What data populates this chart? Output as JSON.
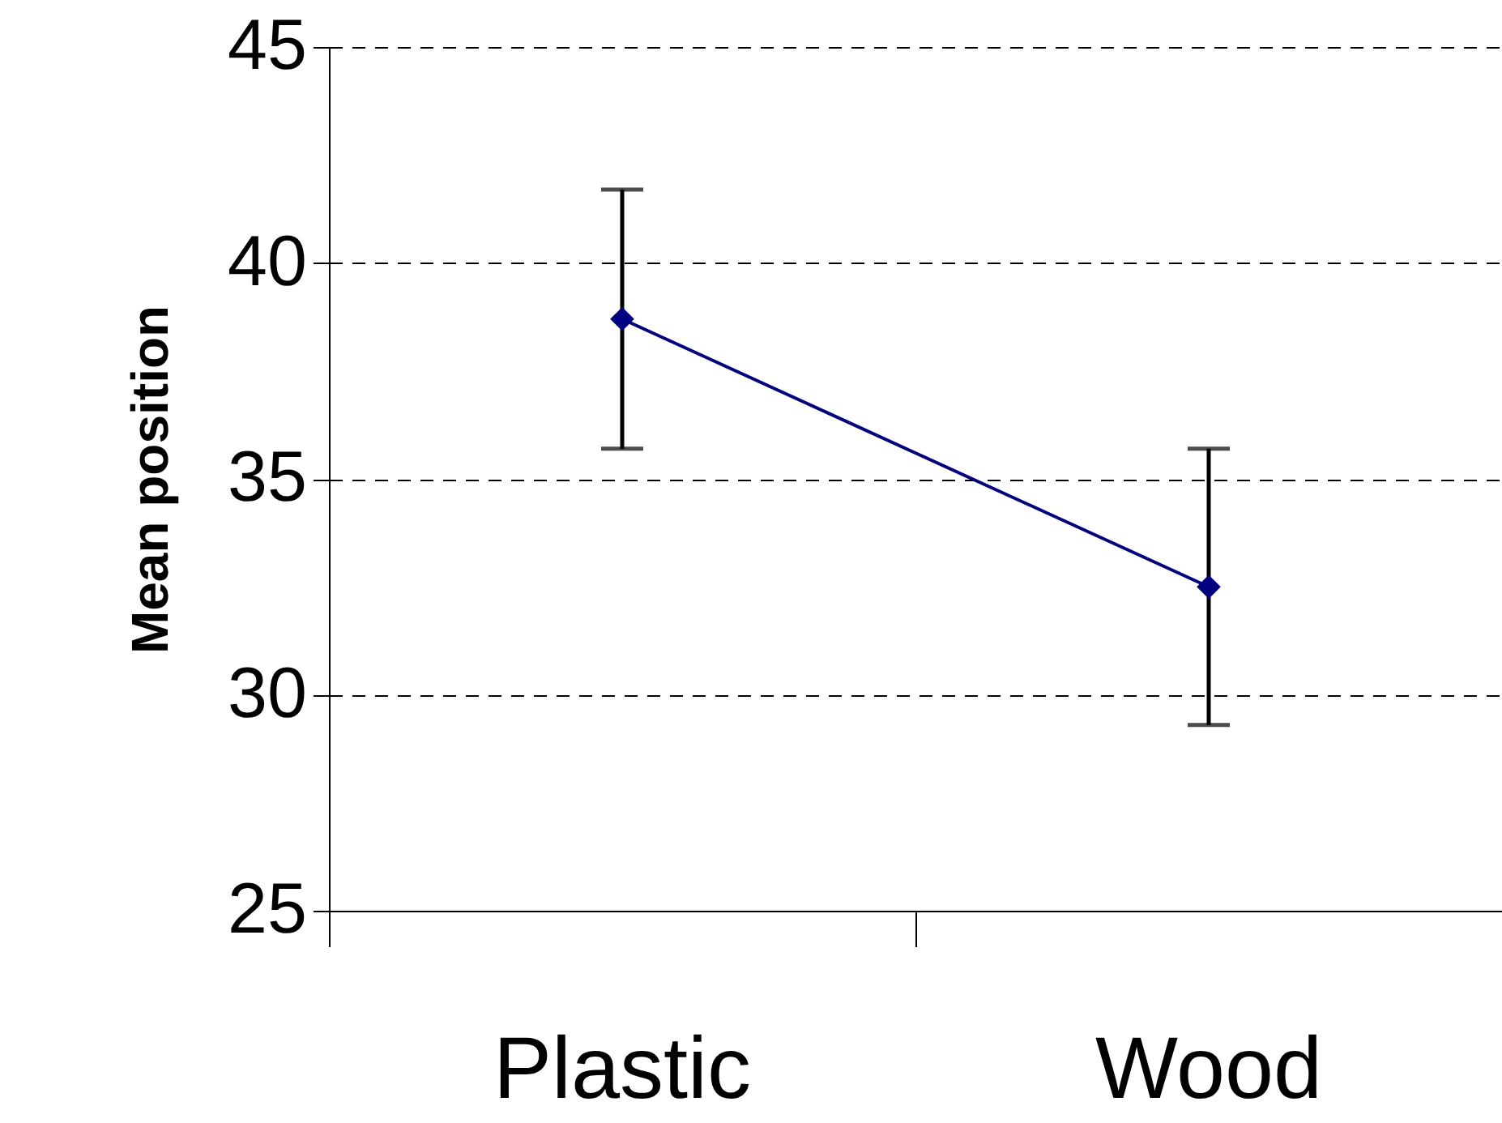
{
  "chart_data": {
    "type": "line",
    "ylabel": "Mean position",
    "categories": [
      "Plastic",
      "Wood"
    ],
    "series": [
      {
        "color": "#000080",
        "values": [
          38.7,
          32.5
        ],
        "errors": [
          3.0,
          3.2
        ]
      }
    ],
    "ylim": [
      25,
      45
    ],
    "yticks": [
      25,
      30,
      35,
      40,
      45
    ],
    "grid": "y",
    "marker": "diamond",
    "line_style": "solid"
  }
}
